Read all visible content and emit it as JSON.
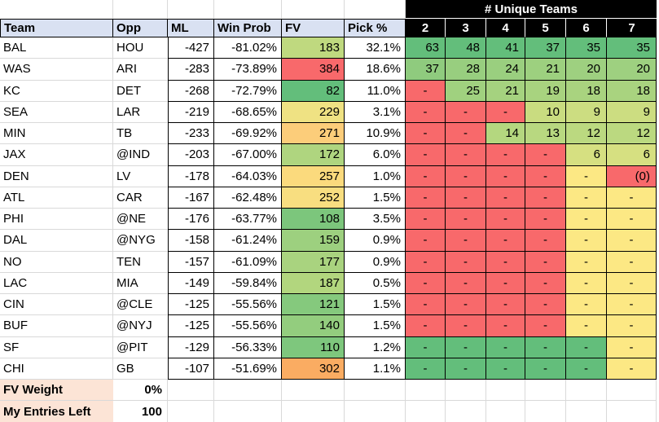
{
  "title_row": {
    "unique_teams_label": "# Unique Teams"
  },
  "columns": {
    "team": "Team",
    "opp": "Opp",
    "ml": "ML",
    "win_prob": "Win Prob",
    "fv": "FV",
    "pick": "Pick %",
    "unique": [
      "2",
      "3",
      "4",
      "5",
      "6",
      "7"
    ]
  },
  "colors": {
    "header_bg": "#D9E1F2",
    "unique_header_bg": "#000000",
    "footer_label_bg": "#FCE4D6",
    "scale_red": "#F8696B",
    "scale_yellow": "#FCE884",
    "scale_green": "#63BE7B",
    "gridline": "#D9D9D9"
  },
  "rows": [
    {
      "team": "BAL",
      "opp": "HOU",
      "ml": "-427",
      "win_prob": "-81.02%",
      "fv": "183",
      "fv_color": "#BFD97F",
      "pick": "32.1%",
      "unique": [
        {
          "v": "63",
          "c": "#63BE7B"
        },
        {
          "v": "48",
          "c": "#63BE7B"
        },
        {
          "v": "41",
          "c": "#63BE7B"
        },
        {
          "v": "37",
          "c": "#63BE7B"
        },
        {
          "v": "35",
          "c": "#63BE7B"
        },
        {
          "v": "35",
          "c": "#63BE7B"
        }
      ]
    },
    {
      "team": "WAS",
      "opp": "ARI",
      "ml": "-283",
      "win_prob": "-73.89%",
      "fv": "384",
      "fv_color": "#F8696B",
      "pick": "18.6%",
      "unique": [
        {
          "v": "37",
          "c": "#8FCB7E"
        },
        {
          "v": "28",
          "c": "#98CE7F"
        },
        {
          "v": "24",
          "c": "#9ACF7F"
        },
        {
          "v": "21",
          "c": "#9DD07F"
        },
        {
          "v": "20",
          "c": "#9ED080"
        },
        {
          "v": "20",
          "c": "#9ED080"
        }
      ]
    },
    {
      "team": "KC",
      "opp": "DET",
      "ml": "-268",
      "win_prob": "-72.79%",
      "fv": "82",
      "fv_color": "#63BE7B",
      "pick": "11.0%",
      "unique": [
        {
          "v": "-",
          "c": "#F8696B"
        },
        {
          "v": "25",
          "c": "#A0D17F"
        },
        {
          "v": "21",
          "c": "#A5D27F"
        },
        {
          "v": "19",
          "c": "#A8D37F"
        },
        {
          "v": "18",
          "c": "#A9D37F"
        },
        {
          "v": "18",
          "c": "#A9D37F"
        }
      ]
    },
    {
      "team": "SEA",
      "opp": "LAR",
      "ml": "-219",
      "win_prob": "-68.65%",
      "fv": "229",
      "fv_color": "#EFE283",
      "pick": "3.1%",
      "unique": [
        {
          "v": "-",
          "c": "#F8696B"
        },
        {
          "v": "-",
          "c": "#F8696B"
        },
        {
          "v": "-",
          "c": "#F8696B"
        },
        {
          "v": "10",
          "c": "#C9DC80"
        },
        {
          "v": "9",
          "c": "#CCDD81"
        },
        {
          "v": "9",
          "c": "#CCDD81"
        }
      ]
    },
    {
      "team": "MIN",
      "opp": "TB",
      "ml": "-233",
      "win_prob": "-69.92%",
      "fv": "271",
      "fv_color": "#FCCD7A",
      "pick": "10.9%",
      "unique": [
        {
          "v": "-",
          "c": "#F8696B"
        },
        {
          "v": "-",
          "c": "#F8696B"
        },
        {
          "v": "14",
          "c": "#B4D77F"
        },
        {
          "v": "13",
          "c": "#B8D880"
        },
        {
          "v": "12",
          "c": "#BBD980"
        },
        {
          "v": "12",
          "c": "#BBD980"
        }
      ]
    },
    {
      "team": "JAX",
      "opp": "@IND",
      "ml": "-203",
      "win_prob": "-67.00%",
      "fv": "172",
      "fv_color": "#AFD57F",
      "pick": "6.0%",
      "unique": [
        {
          "v": "-",
          "c": "#F8696B"
        },
        {
          "v": "-",
          "c": "#F8696B"
        },
        {
          "v": "-",
          "c": "#F8696B"
        },
        {
          "v": "-",
          "c": "#F8696B"
        },
        {
          "v": "6",
          "c": "#D6E081"
        },
        {
          "v": "6",
          "c": "#D6E081"
        }
      ]
    },
    {
      "team": "DEN",
      "opp": "LV",
      "ml": "-178",
      "win_prob": "-64.03%",
      "fv": "257",
      "fv_color": "#FBDA7D",
      "pick": "1.0%",
      "unique": [
        {
          "v": "-",
          "c": "#F8696B"
        },
        {
          "v": "-",
          "c": "#F8696B"
        },
        {
          "v": "-",
          "c": "#F8696B"
        },
        {
          "v": "-",
          "c": "#F8696B"
        },
        {
          "v": "-",
          "c": "#FCE884"
        },
        {
          "v": "(0)",
          "c": "#F8696B"
        }
      ]
    },
    {
      "team": "ATL",
      "opp": "CAR",
      "ml": "-167",
      "win_prob": "-62.48%",
      "fv": "252",
      "fv_color": "#F8DE80",
      "pick": "1.5%",
      "unique": [
        {
          "v": "-",
          "c": "#F8696B"
        },
        {
          "v": "-",
          "c": "#F8696B"
        },
        {
          "v": "-",
          "c": "#F8696B"
        },
        {
          "v": "-",
          "c": "#F8696B"
        },
        {
          "v": "-",
          "c": "#FCE884"
        },
        {
          "v": "-",
          "c": "#FCE884"
        }
      ]
    },
    {
      "team": "PHI",
      "opp": "@NE",
      "ml": "-176",
      "win_prob": "-63.77%",
      "fv": "108",
      "fv_color": "#7CC67C",
      "pick": "3.5%",
      "unique": [
        {
          "v": "-",
          "c": "#F8696B"
        },
        {
          "v": "-",
          "c": "#F8696B"
        },
        {
          "v": "-",
          "c": "#F8696B"
        },
        {
          "v": "-",
          "c": "#F8696B"
        },
        {
          "v": "-",
          "c": "#FCE884"
        },
        {
          "v": "-",
          "c": "#FCE884"
        }
      ]
    },
    {
      "team": "DAL",
      "opp": "@NYG",
      "ml": "-158",
      "win_prob": "-61.24%",
      "fv": "159",
      "fv_color": "#9DD07F",
      "pick": "0.9%",
      "unique": [
        {
          "v": "-",
          "c": "#F8696B"
        },
        {
          "v": "-",
          "c": "#F8696B"
        },
        {
          "v": "-",
          "c": "#F8696B"
        },
        {
          "v": "-",
          "c": "#F8696B"
        },
        {
          "v": "-",
          "c": "#FCE884"
        },
        {
          "v": "-",
          "c": "#FCE884"
        }
      ]
    },
    {
      "team": "NO",
      "opp": "TEN",
      "ml": "-157",
      "win_prob": "-61.09%",
      "fv": "177",
      "fv_color": "#A9D37F",
      "pick": "0.9%",
      "unique": [
        {
          "v": "-",
          "c": "#F8696B"
        },
        {
          "v": "-",
          "c": "#F8696B"
        },
        {
          "v": "-",
          "c": "#F8696B"
        },
        {
          "v": "-",
          "c": "#F8696B"
        },
        {
          "v": "-",
          "c": "#FCE884"
        },
        {
          "v": "-",
          "c": "#FCE884"
        }
      ]
    },
    {
      "team": "LAC",
      "opp": "MIA",
      "ml": "-149",
      "win_prob": "-59.84%",
      "fv": "187",
      "fv_color": "#B2D67E",
      "pick": "0.5%",
      "unique": [
        {
          "v": "-",
          "c": "#F8696B"
        },
        {
          "v": "-",
          "c": "#F8696B"
        },
        {
          "v": "-",
          "c": "#F8696B"
        },
        {
          "v": "-",
          "c": "#F8696B"
        },
        {
          "v": "-",
          "c": "#FCE884"
        },
        {
          "v": "-",
          "c": "#FCE884"
        }
      ]
    },
    {
      "team": "CIN",
      "opp": "@CLE",
      "ml": "-125",
      "win_prob": "-55.56%",
      "fv": "121",
      "fv_color": "#85C97D",
      "pick": "1.5%",
      "unique": [
        {
          "v": "-",
          "c": "#F8696B"
        },
        {
          "v": "-",
          "c": "#F8696B"
        },
        {
          "v": "-",
          "c": "#F8696B"
        },
        {
          "v": "-",
          "c": "#F8696B"
        },
        {
          "v": "-",
          "c": "#FCE884"
        },
        {
          "v": "-",
          "c": "#FCE884"
        }
      ]
    },
    {
      "team": "BUF",
      "opp": "@NYJ",
      "ml": "-125",
      "win_prob": "-55.56%",
      "fv": "140",
      "fv_color": "#93CD7E",
      "pick": "1.5%",
      "unique": [
        {
          "v": "-",
          "c": "#F8696B"
        },
        {
          "v": "-",
          "c": "#F8696B"
        },
        {
          "v": "-",
          "c": "#F8696B"
        },
        {
          "v": "-",
          "c": "#F8696B"
        },
        {
          "v": "-",
          "c": "#FCE884"
        },
        {
          "v": "-",
          "c": "#FCE884"
        }
      ]
    },
    {
      "team": "SF",
      "opp": "@PIT",
      "ml": "-129",
      "win_prob": "-56.33%",
      "fv": "110",
      "fv_color": "#7EC77D",
      "pick": "1.2%",
      "unique": [
        {
          "v": "-",
          "c": "#63BE7B"
        },
        {
          "v": "-",
          "c": "#63BE7B"
        },
        {
          "v": "-",
          "c": "#63BE7B"
        },
        {
          "v": "-",
          "c": "#63BE7B"
        },
        {
          "v": "-",
          "c": "#63BE7B"
        },
        {
          "v": "-",
          "c": "#FCE884"
        }
      ]
    },
    {
      "team": "CHI",
      "opp": "GB",
      "ml": "-107",
      "win_prob": "-51.69%",
      "fv": "302",
      "fv_color": "#FAAC62",
      "pick": "1.1%",
      "unique": [
        {
          "v": "-",
          "c": "#63BE7B"
        },
        {
          "v": "-",
          "c": "#63BE7B"
        },
        {
          "v": "-",
          "c": "#63BE7B"
        },
        {
          "v": "-",
          "c": "#63BE7B"
        },
        {
          "v": "-",
          "c": "#63BE7B"
        },
        {
          "v": "-",
          "c": "#FCE884"
        }
      ]
    }
  ],
  "footer": [
    {
      "label": "FV Weight",
      "value": "0%"
    },
    {
      "label": "My Entries Left",
      "value": "100"
    }
  ]
}
